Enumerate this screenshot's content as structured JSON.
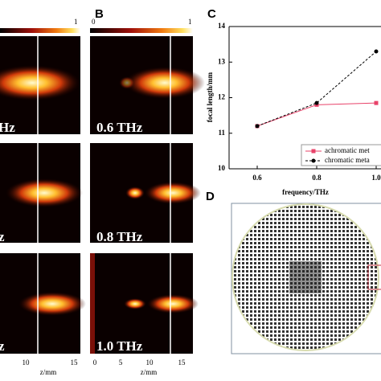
{
  "panels": {
    "A": {
      "colorbar_max": "1",
      "labels": [
        "Hz",
        "z",
        "z"
      ],
      "xticks": [
        "10",
        "15"
      ],
      "xlabel": "z/mm"
    },
    "B": {
      "letter": "B",
      "colorbar_min": "0",
      "colorbar_max": "1",
      "labels": [
        "0.6 THz",
        "0.8 THz",
        "1.0 THz"
      ],
      "xticks": [
        "0",
        "5",
        "10",
        "15"
      ],
      "xlabel": "z/mm"
    },
    "D": {
      "letter": "D"
    }
  },
  "chart_data": {
    "type": "line",
    "letter": "C",
    "x_label": "frequency/THz",
    "y_label": "focal length/mm",
    "categories": [
      "0.6",
      "0.8",
      "1.0"
    ],
    "series": [
      {
        "name": "achromatic met",
        "color": "#e8436a",
        "marker": "square",
        "dashed": false,
        "values": [
          11.2,
          11.8,
          11.85
        ]
      },
      {
        "name": "chromatic meta",
        "color": "#000000",
        "marker": "circle",
        "dashed": true,
        "values": [
          11.2,
          11.85,
          13.3
        ]
      }
    ],
    "ylim": [
      10,
      14
    ],
    "yticks": [
      10,
      11,
      12,
      13,
      14
    ],
    "grid": false
  }
}
